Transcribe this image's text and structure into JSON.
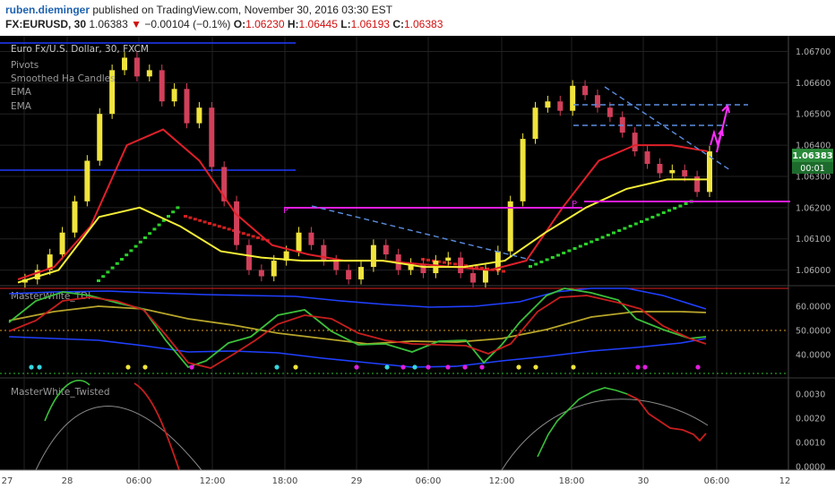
{
  "header": {
    "author": "ruben.dieminger",
    "published_text": " published on TradingView.com, November 30, 2016 03:30 EST",
    "symbol": "FX:EURUSD, 30",
    "last": "1.06383",
    "change": "−0.00104 (−0.1%)",
    "open_label": "O:",
    "open": "1.06230",
    "high_label": "H:",
    "high": "1.06445",
    "low_label": "L:",
    "low": "1.06193",
    "close_label": "C:",
    "close": "1.06383"
  },
  "legend": {
    "title": "Euro Fx/U.S. Dollar, 30, FXCM",
    "items": [
      "Pivots",
      "Smoothed Ha Candles",
      "EMA",
      "EMA"
    ]
  },
  "price_badge": {
    "value": "1.06383",
    "timer": "00:01"
  },
  "colors": {
    "bg": "#000000",
    "up": "#f0e43c",
    "down": "#d1405a",
    "ema_red": "#e0202a",
    "ema_yellow": "#f5ee38",
    "pivot": "#e21ee0",
    "trend": "#5b8de0",
    "green": "#2bd12b",
    "blue": "#2040ff",
    "grid": "#2a2a2a"
  },
  "x_labels": [
    "27",
    "28",
    "06:00",
    "12:00",
    "18:00",
    "29",
    "06:00",
    "12:00",
    "18:00",
    "30",
    "06:00",
    "12"
  ],
  "chart_data": [
    {
      "type": "candlestick",
      "title": "Euro Fx/U.S. Dollar, 30, FXCM",
      "y_ticks": [
        "1.06700",
        "1.06600",
        "1.06500",
        "1.06400",
        "1.06300",
        "1.06200",
        "1.06100",
        "1.06000"
      ],
      "ylim": [
        1.0595,
        1.0675
      ],
      "x": [
        "27",
        "28",
        "06:00",
        "12:00",
        "18:00",
        "29",
        "06:00",
        "12:00",
        "18:00",
        "30",
        "06:00",
        "12"
      ],
      "close_path": [
        1.0596,
        1.0597,
        1.06,
        1.0605,
        1.0612,
        1.0622,
        1.0635,
        1.065,
        1.0664,
        1.0668,
        1.0662,
        1.0664,
        1.0654,
        1.0658,
        1.0647,
        1.0652,
        1.0633,
        1.0622,
        1.0608,
        1.06,
        1.0598,
        1.0603,
        1.0606,
        1.0612,
        1.0608,
        1.0603,
        1.06,
        1.0597,
        1.0601,
        1.0608,
        1.0605,
        1.06,
        1.0602,
        1.0599,
        1.0603,
        1.0604,
        1.0599,
        1.0596,
        1.06,
        1.0606,
        1.0622,
        1.0642,
        1.0652,
        1.0654,
        1.0651,
        1.0659,
        1.0656,
        1.0652,
        1.0649,
        1.0644,
        1.0638,
        1.0634,
        1.0631,
        1.0632,
        1.063,
        1.0625,
        1.0638
      ],
      "ema_red": [
        1.0597,
        1.0601,
        1.0614,
        1.064,
        1.0645,
        1.0635,
        1.0618,
        1.0608,
        1.0605,
        1.0603,
        1.0603,
        1.0602,
        1.0601,
        1.06,
        1.0603,
        1.062,
        1.0635,
        1.064,
        1.064,
        1.0638
      ],
      "ema_yellow": [
        1.0596,
        1.06,
        1.0617,
        1.062,
        1.0614,
        1.0606,
        1.0604,
        1.0603,
        1.0603,
        1.0603,
        1.0601,
        1.0601,
        1.0603,
        1.0612,
        1.062,
        1.0626,
        1.0629,
        1.0629
      ],
      "pivot_levels": [
        1.06207,
        1.06228
      ],
      "trend_lines": [
        "descending",
        "horizontal 1.06550",
        "horizontal 1.06470"
      ]
    },
    {
      "type": "line",
      "title": "MasterWhite_TDI",
      "y_ticks": [
        "60.0000",
        "50.0000",
        "40.0000"
      ],
      "ylim": [
        32,
        70
      ],
      "levels": [
        68,
        50,
        32
      ]
    },
    {
      "type": "line",
      "title": "MasterWhite_Twisted",
      "y_ticks": [
        "0.0030",
        "0.0020",
        "0.0010",
        "0.0000"
      ],
      "ylim": [
        0,
        0.0035
      ]
    }
  ]
}
